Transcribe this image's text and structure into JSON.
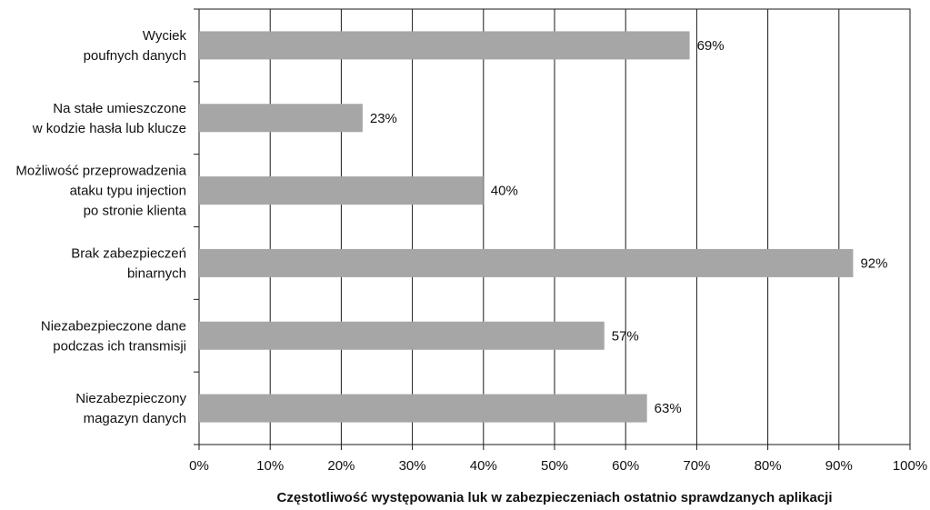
{
  "chart_data": {
    "type": "bar",
    "orientation": "horizontal",
    "categories": [
      [
        "Wyciek",
        "poufnych danych"
      ],
      [
        "Na stałe umieszczone",
        "w kodzie hasła lub klucze"
      ],
      [
        "Możliwość przeprowadzenia",
        "ataku typu injection",
        "po stronie klienta"
      ],
      [
        "Brak zabezpieczeń",
        "binarnych"
      ],
      [
        "Niezabezpieczone dane",
        "podczas ich transmisji"
      ],
      [
        "Niezabezpieczony",
        "magazyn danych"
      ]
    ],
    "values": [
      69,
      23,
      40,
      92,
      57,
      63
    ],
    "value_labels": [
      "69%",
      "23%",
      "40%",
      "92%",
      "57%",
      "63%"
    ],
    "xlim": [
      0,
      100
    ],
    "xticks": [
      0,
      10,
      20,
      30,
      40,
      50,
      60,
      70,
      80,
      90,
      100
    ],
    "xtick_labels": [
      "0%",
      "10%",
      "20%",
      "30%",
      "40%",
      "50%",
      "60%",
      "70%",
      "80%",
      "90%",
      "100%"
    ],
    "xlabel": "Częstotliwość występowania luk w zabezpieczeniach ostatnio sprawdzanych aplikacji",
    "ylabel": "",
    "grid": "vertical",
    "colors": {
      "bar": "#a6a6a6",
      "grid": "#1a1a1a",
      "axis": "#1a1a1a"
    }
  }
}
